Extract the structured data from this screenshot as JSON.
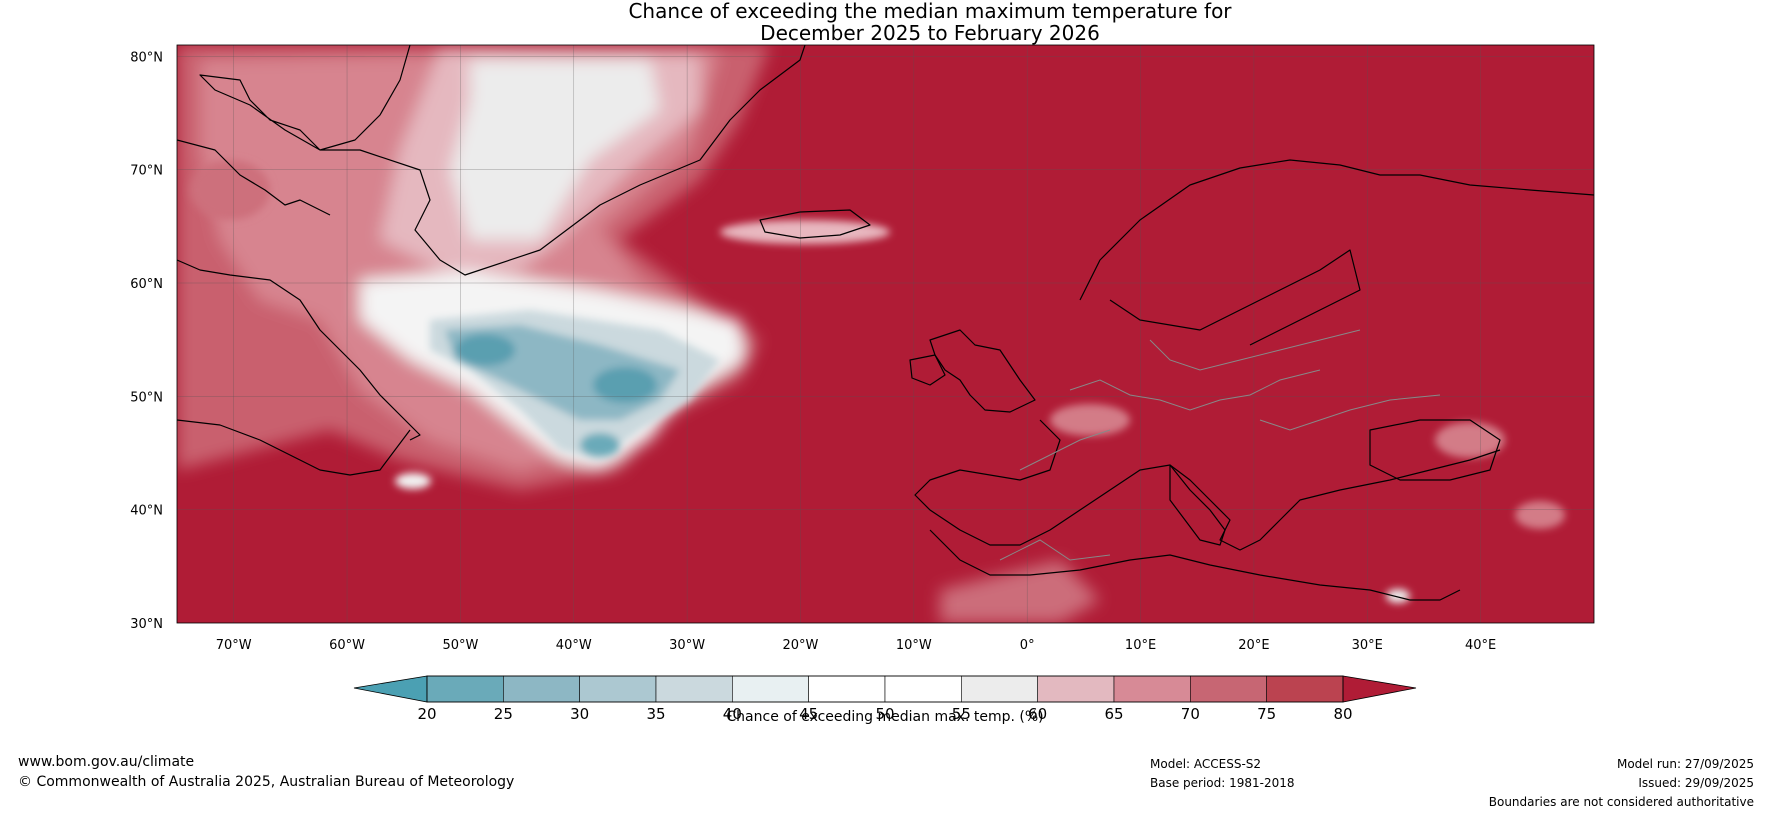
{
  "title": {
    "line1": "Chance of exceeding the median maximum temperature for",
    "line2": "December 2025 to February 2026"
  },
  "map": {
    "lat_labels": [
      "80°N",
      "70°N",
      "60°N",
      "50°N",
      "40°N",
      "30°N"
    ],
    "lon_labels": [
      "70°W",
      "60°W",
      "50°W",
      "40°W",
      "30°W",
      "20°W",
      "10°W",
      "0°",
      "10°E",
      "20°E",
      "30°E",
      "40°E"
    ],
    "lat_range": [
      30,
      81
    ],
    "lon_range": [
      -75,
      50
    ],
    "background_color": "#b01c36"
  },
  "colorbar": {
    "ticks": [
      "20",
      "25",
      "30",
      "35",
      "40",
      "45",
      "50",
      "55",
      "60",
      "65",
      "70",
      "75",
      "80"
    ],
    "bin_colors": [
      "#6aaab9",
      "#8db7c4",
      "#acc8d1",
      "#cbd9de",
      "#e8f0f2",
      "#ffffff",
      "#ffffff",
      "#ececec",
      "#e3b9c0",
      "#d78a96",
      "#c76673",
      "#bb4350"
    ],
    "low_color": "#4ba0b3",
    "high_color": "#b01c36",
    "label": "Chance of exceeding median max. temp. (%)"
  },
  "footer": {
    "website": "www.bom.gov.au/climate",
    "copyright": "© Commonwealth of Australia 2025, Australian Bureau of Meteorology",
    "model": "Model: ACCESS-S2",
    "base_period": "Base period: 1981-2018",
    "model_run": "Model run: 27/09/2025",
    "issued": "Issued: 29/09/2025",
    "disclaimer": "Boundaries are not considered authoritative"
  }
}
